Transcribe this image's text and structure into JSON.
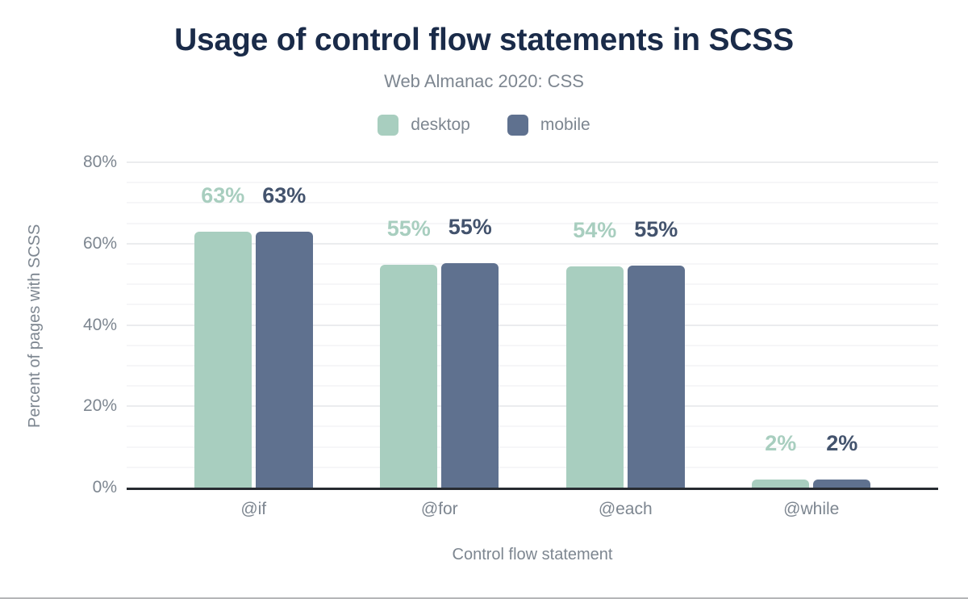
{
  "chart_data": {
    "type": "bar",
    "title": "Usage of control flow statements in SCSS",
    "subtitle": "Web Almanac 2020: CSS",
    "xlabel": "Control flow statement",
    "ylabel": "Percent of pages with SCSS",
    "categories": [
      "@if",
      "@for",
      "@each",
      "@while"
    ],
    "series": [
      {
        "name": "desktop",
        "color": "#a8cebf",
        "label_color": "#a8cebf",
        "values": [
          63,
          54.8,
          54.4,
          2
        ],
        "labels": [
          "63%",
          "55%",
          "54%",
          "2%"
        ]
      },
      {
        "name": "mobile",
        "color": "#5f718f",
        "label_color": "#43536d",
        "values": [
          63,
          55.1,
          54.5,
          2
        ],
        "labels": [
          "63%",
          "55%",
          "55%",
          "2%"
        ]
      }
    ],
    "ylim": [
      0,
      80
    ],
    "yticks": [
      {
        "value": 0,
        "label": "0%"
      },
      {
        "value": 20,
        "label": "20%"
      },
      {
        "value": 40,
        "label": "40%"
      },
      {
        "value": 60,
        "label": "60%"
      },
      {
        "value": 80,
        "label": "80%"
      }
    ],
    "grid": {
      "minor_every": 5,
      "major_every": 20,
      "orientation": "horizontal",
      "legend_position": "top"
    }
  },
  "colors": {
    "title_navy": "#1a2b49",
    "text_gray": "#7d8690",
    "axis_line": "#272b31",
    "grid_major": "#ebecee",
    "grid_minor": "#f6f6f8",
    "frame_bottom_border": "#b5b6b8"
  }
}
